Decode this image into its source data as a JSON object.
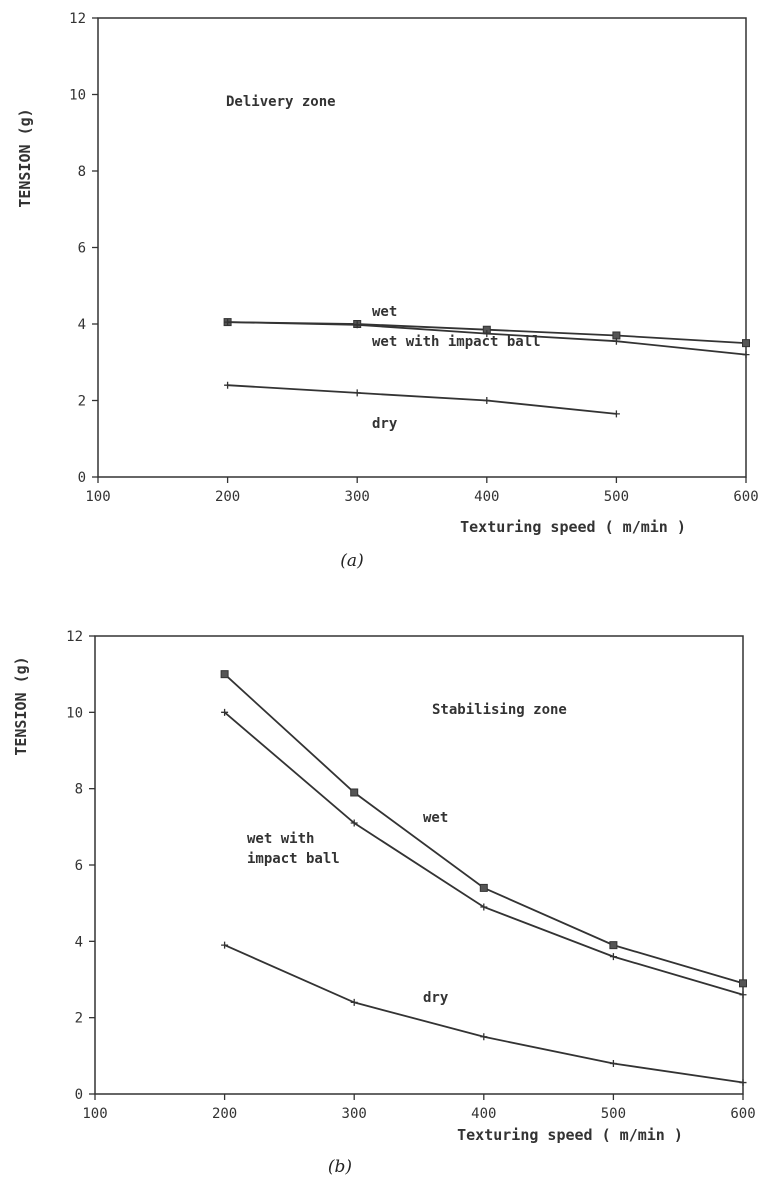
{
  "chart_data": [
    {
      "type": "line",
      "panel_label": "(a)",
      "xlabel": "Texturing speed ( m/min )",
      "ylabel": "TENSION (g)",
      "xlim": [
        100,
        600
      ],
      "ylim": [
        0,
        12
      ],
      "x_ticks": [
        "100",
        "200",
        "300",
        "400",
        "500",
        "600"
      ],
      "y_ticks": [
        "0",
        "2",
        "4",
        "6",
        "8",
        "10",
        "12"
      ],
      "grid": false,
      "annotations": [
        "Delivery zone",
        "wet",
        "wet with impact ball",
        "dry"
      ],
      "series": [
        {
          "x": [
            200,
            300,
            400,
            500,
            600
          ],
          "values": [
            4.05,
            4.0,
            3.85,
            3.7,
            3.5
          ],
          "marker": "square"
        },
        {
          "x": [
            200,
            300,
            400,
            500,
            600
          ],
          "values": [
            4.05,
            3.98,
            3.75,
            3.55,
            3.2
          ],
          "marker": "plus"
        },
        {
          "x": [
            200,
            300,
            400,
            500
          ],
          "values": [
            2.4,
            2.2,
            2.0,
            1.65
          ],
          "marker": "plus"
        }
      ]
    },
    {
      "type": "line",
      "panel_label": "(b)",
      "xlabel": "Texturing speed ( m/min )",
      "ylabel": "TENSION (g)",
      "xlim": [
        100,
        600
      ],
      "ylim": [
        0,
        12
      ],
      "x_ticks": [
        "100",
        "200",
        "300",
        "400",
        "500",
        "600"
      ],
      "y_ticks": [
        "0",
        "2",
        "4",
        "6",
        "8",
        "10",
        "12"
      ],
      "grid": false,
      "annotations": [
        "Stabilising zone",
        "wet",
        "wet with\nimpact ball",
        "dry"
      ],
      "series": [
        {
          "x": [
            200,
            300,
            400,
            500,
            600
          ],
          "values": [
            11.0,
            7.9,
            5.4,
            3.9,
            2.9
          ],
          "marker": "square"
        },
        {
          "x": [
            200,
            300,
            400,
            500,
            600
          ],
          "values": [
            10.0,
            7.1,
            4.9,
            3.6,
            2.6
          ],
          "marker": "plus"
        },
        {
          "x": [
            200,
            300,
            400,
            500,
            600
          ],
          "values": [
            3.9,
            2.4,
            1.5,
            0.8,
            0.3
          ],
          "marker": "plus"
        }
      ]
    }
  ]
}
